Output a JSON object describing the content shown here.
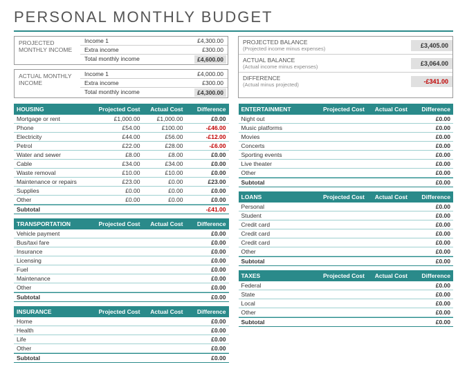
{
  "title": "PERSONAL MONTHLY BUDGET",
  "income": {
    "projected": {
      "label": "PROJECTED MONTHLY INCOME",
      "rows": [
        {
          "label": "Income 1",
          "value": "£4,300.00"
        },
        {
          "label": "Extra income",
          "value": "£300.00"
        }
      ],
      "total": {
        "label": "Total monthly income",
        "value": "£4,600.00"
      }
    },
    "actual": {
      "label": "ACTUAL MONTHLY INCOME",
      "rows": [
        {
          "label": "Income 1",
          "value": "£4,000.00"
        },
        {
          "label": "Extra income",
          "value": "£300.00"
        }
      ],
      "total": {
        "label": "Total monthly income",
        "value": "£4,300.00"
      }
    }
  },
  "balance": {
    "rows": [
      {
        "label": "PROJECTED BALANCE",
        "sub": "(Projected income minus expenses)",
        "value": "£3,405.00",
        "neg": false
      },
      {
        "label": "ACTUAL BALANCE",
        "sub": "(Actual income minus expenses)",
        "value": "£3,064.00",
        "neg": false
      },
      {
        "label": "DIFFERENCE",
        "sub": "(Actual minus projected)",
        "value": "-£341.00",
        "neg": true
      }
    ]
  },
  "headers": {
    "pc": "Projected Cost",
    "ac": "Actual Cost",
    "diff": "Difference"
  },
  "subtotal_label": "Subtotal",
  "left": [
    {
      "name": "HOUSING",
      "rows": [
        {
          "n": "Mortgage or rent",
          "p": "£1,000.00",
          "a": "£1,000.00",
          "d": "£0.00",
          "neg": false
        },
        {
          "n": "Phone",
          "p": "£54.00",
          "a": "£100.00",
          "d": "-£46.00",
          "neg": true
        },
        {
          "n": "Electricity",
          "p": "£44.00",
          "a": "£56.00",
          "d": "-£12.00",
          "neg": true
        },
        {
          "n": "Petrol",
          "p": "£22.00",
          "a": "£28.00",
          "d": "-£6.00",
          "neg": true
        },
        {
          "n": "Water and sewer",
          "p": "£8.00",
          "a": "£8.00",
          "d": "£0.00",
          "neg": false
        },
        {
          "n": "Cable",
          "p": "£34.00",
          "a": "£34.00",
          "d": "£0.00",
          "neg": false
        },
        {
          "n": "Waste removal",
          "p": "£10.00",
          "a": "£10.00",
          "d": "£0.00",
          "neg": false
        },
        {
          "n": "Maintenance or repairs",
          "p": "£23.00",
          "a": "£0.00",
          "d": "£23.00",
          "neg": false
        },
        {
          "n": "Supplies",
          "p": "£0.00",
          "a": "£0.00",
          "d": "£0.00",
          "neg": false
        },
        {
          "n": "Other",
          "p": "£0.00",
          "a": "£0.00",
          "d": "£0.00",
          "neg": false
        }
      ],
      "subtotal": {
        "p": "",
        "a": "",
        "d": "-£41.00",
        "neg": true
      }
    },
    {
      "name": "TRANSPORTATION",
      "rows": [
        {
          "n": "Vehicle payment",
          "p": "",
          "a": "",
          "d": "£0.00",
          "neg": false
        },
        {
          "n": "Bus/taxi fare",
          "p": "",
          "a": "",
          "d": "£0.00",
          "neg": false
        },
        {
          "n": "Insurance",
          "p": "",
          "a": "",
          "d": "£0.00",
          "neg": false
        },
        {
          "n": "Licensing",
          "p": "",
          "a": "",
          "d": "£0.00",
          "neg": false
        },
        {
          "n": "Fuel",
          "p": "",
          "a": "",
          "d": "£0.00",
          "neg": false
        },
        {
          "n": "Maintenance",
          "p": "",
          "a": "",
          "d": "£0.00",
          "neg": false
        },
        {
          "n": "Other",
          "p": "",
          "a": "",
          "d": "£0.00",
          "neg": false
        }
      ],
      "subtotal": {
        "p": "",
        "a": "",
        "d": "£0.00",
        "neg": false
      }
    },
    {
      "name": "INSURANCE",
      "rows": [
        {
          "n": "Home",
          "p": "",
          "a": "",
          "d": "£0.00",
          "neg": false
        },
        {
          "n": "Health",
          "p": "",
          "a": "",
          "d": "£0.00",
          "neg": false
        },
        {
          "n": "Life",
          "p": "",
          "a": "",
          "d": "£0.00",
          "neg": false
        },
        {
          "n": "Other",
          "p": "",
          "a": "",
          "d": "£0.00",
          "neg": false
        }
      ],
      "subtotal": {
        "p": "",
        "a": "",
        "d": "£0.00",
        "neg": false
      }
    }
  ],
  "right": [
    {
      "name": "ENTERTAINMENT",
      "rows": [
        {
          "n": "Night out",
          "p": "",
          "a": "",
          "d": "£0.00",
          "neg": false
        },
        {
          "n": "Music platforms",
          "p": "",
          "a": "",
          "d": "£0.00",
          "neg": false
        },
        {
          "n": "Movies",
          "p": "",
          "a": "",
          "d": "£0.00",
          "neg": false
        },
        {
          "n": "Concerts",
          "p": "",
          "a": "",
          "d": "£0.00",
          "neg": false
        },
        {
          "n": "Sporting events",
          "p": "",
          "a": "",
          "d": "£0.00",
          "neg": false
        },
        {
          "n": "Live theater",
          "p": "",
          "a": "",
          "d": "£0.00",
          "neg": false
        },
        {
          "n": "Other",
          "p": "",
          "a": "",
          "d": "£0.00",
          "neg": false
        }
      ],
      "subtotal": {
        "p": "",
        "a": "",
        "d": "£0.00",
        "neg": false
      }
    },
    {
      "name": "LOANS",
      "rows": [
        {
          "n": "Personal",
          "p": "",
          "a": "",
          "d": "£0.00",
          "neg": false
        },
        {
          "n": "Student",
          "p": "",
          "a": "",
          "d": "£0.00",
          "neg": false
        },
        {
          "n": "Credit card",
          "p": "",
          "a": "",
          "d": "£0.00",
          "neg": false
        },
        {
          "n": "Credit card",
          "p": "",
          "a": "",
          "d": "£0.00",
          "neg": false
        },
        {
          "n": "Credit card",
          "p": "",
          "a": "",
          "d": "£0.00",
          "neg": false
        },
        {
          "n": "Other",
          "p": "",
          "a": "",
          "d": "£0.00",
          "neg": false
        }
      ],
      "subtotal": {
        "p": "",
        "a": "",
        "d": "£0.00",
        "neg": false
      }
    },
    {
      "name": "TAXES",
      "rows": [
        {
          "n": "Federal",
          "p": "",
          "a": "",
          "d": "£0.00",
          "neg": false
        },
        {
          "n": "State",
          "p": "",
          "a": "",
          "d": "£0.00",
          "neg": false
        },
        {
          "n": "Local",
          "p": "",
          "a": "",
          "d": "£0.00",
          "neg": false
        },
        {
          "n": "Other",
          "p": "",
          "a": "",
          "d": "£0.00",
          "neg": false
        }
      ],
      "subtotal": {
        "p": "",
        "a": "",
        "d": "£0.00",
        "neg": false
      }
    }
  ]
}
